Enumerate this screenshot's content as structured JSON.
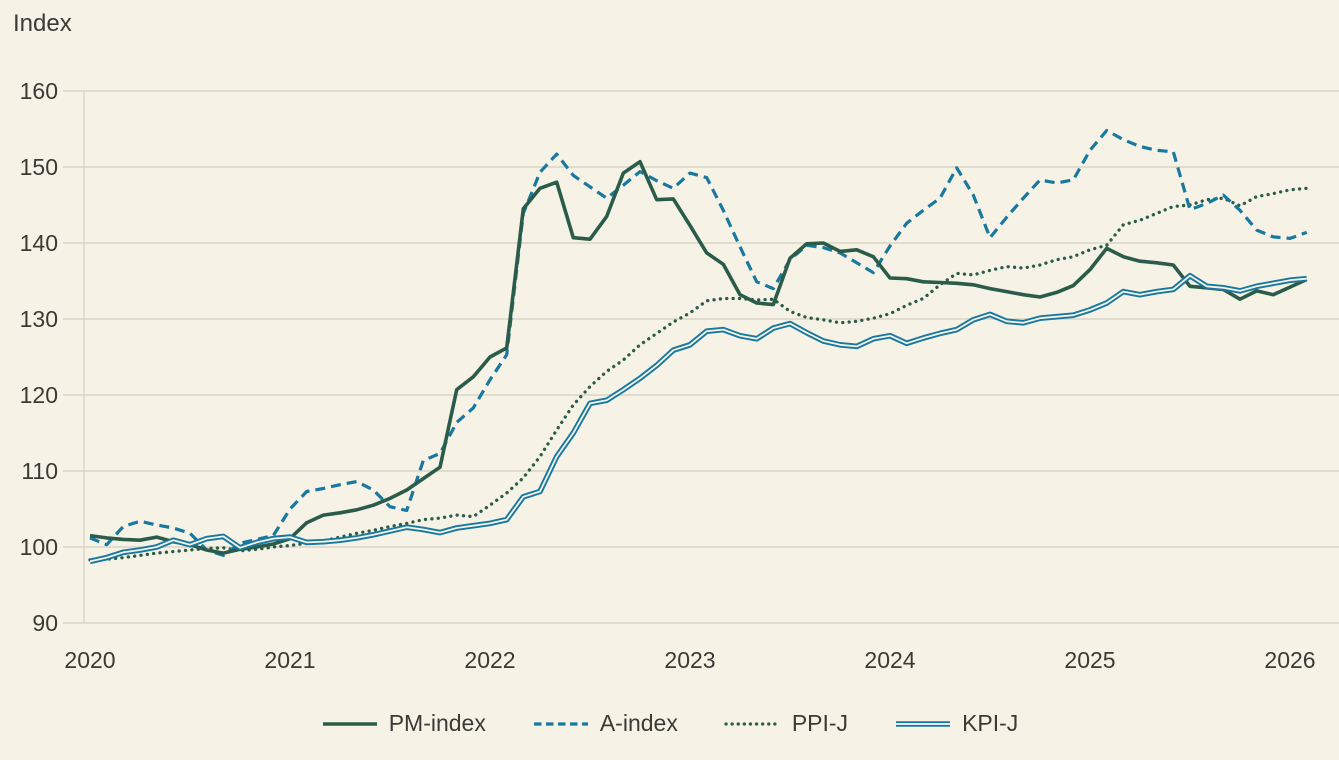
{
  "chart_data": {
    "type": "line",
    "title": "Index",
    "x_axis": {
      "tick_labels": [
        "2020",
        "2021",
        "2022",
        "2023",
        "2024",
        "2025",
        "2026"
      ],
      "months_per_tick": 12,
      "start": "2020-01"
    },
    "y_axis": {
      "min": 90,
      "max": 160,
      "step": 10,
      "tick_labels": [
        "160",
        "150",
        "140",
        "130",
        "120",
        "110",
        "100",
        "90"
      ]
    },
    "grid": true,
    "legend_position": "bottom",
    "colors": {
      "green": "#2b5c49",
      "blue": "#1878a0",
      "background": "#f6f3e6",
      "gridline": "#d8d4c6",
      "text": "#3a3a37"
    },
    "series": [
      {
        "name": "PM-index",
        "style": "solid",
        "color_key": "green",
        "values": [
          101.5,
          101.2,
          101.0,
          100.9,
          101.3,
          100.7,
          100.3,
          99.6,
          99.2,
          99.7,
          100.0,
          100.4,
          101.1,
          103.2,
          104.2,
          104.5,
          104.9,
          105.5,
          106.4,
          107.5,
          109.0,
          110.5,
          120.7,
          122.4,
          125.0,
          126.2,
          144.5,
          147.2,
          148.0,
          140.7,
          140.5,
          143.5,
          149.2,
          150.7,
          145.7,
          145.8,
          142.3,
          138.7,
          137.2,
          133.2,
          132.1,
          131.9,
          138.0,
          139.9,
          140.0,
          138.9,
          139.1,
          138.2,
          135.4,
          135.3,
          134.9,
          134.8,
          134.7,
          134.5,
          134.0,
          133.6,
          133.2,
          132.9,
          133.5,
          134.4,
          136.5,
          139.3,
          138.2,
          137.6,
          137.4,
          137.1,
          134.3,
          134.1,
          133.9,
          132.6,
          133.7,
          133.2,
          134.2,
          135.2
        ]
      },
      {
        "name": "A-index",
        "style": "dashed",
        "color_key": "blue",
        "values": [
          101.2,
          100.3,
          102.7,
          103.4,
          102.9,
          102.5,
          101.8,
          99.6,
          98.9,
          100.5,
          101.0,
          101.5,
          105.0,
          107.3,
          107.7,
          108.2,
          108.6,
          107.5,
          105.3,
          104.8,
          111.4,
          112.3,
          116.4,
          118.3,
          122.0,
          125.3,
          143.9,
          149.3,
          151.7,
          148.9,
          147.4,
          145.9,
          147.6,
          149.4,
          148.2,
          147.2,
          149.2,
          148.6,
          144.3,
          139.5,
          134.9,
          134.0,
          137.8,
          139.7,
          139.4,
          138.7,
          137.4,
          136.1,
          139.6,
          142.6,
          144.3,
          145.9,
          149.9,
          146.3,
          140.7,
          143.4,
          145.9,
          148.3,
          147.9,
          148.3,
          152.2,
          154.8,
          153.6,
          152.7,
          152.2,
          152.0,
          144.4,
          145.2,
          146.3,
          144.3,
          141.7,
          140.8,
          140.6,
          141.4
        ]
      },
      {
        "name": "PPI-J",
        "style": "dotted",
        "color_key": "green",
        "values": [
          98.3,
          98.4,
          98.6,
          98.9,
          99.2,
          99.4,
          99.6,
          99.8,
          99.9,
          99.5,
          99.7,
          100.0,
          100.2,
          100.5,
          100.8,
          101.3,
          101.8,
          102.2,
          102.7,
          103.1,
          103.6,
          103.8,
          104.2,
          104.0,
          105.5,
          107.1,
          109.1,
          111.9,
          115.4,
          118.7,
          121.1,
          123.1,
          124.6,
          126.6,
          128.1,
          129.6,
          130.8,
          132.4,
          132.7,
          132.7,
          132.5,
          132.6,
          131.0,
          130.2,
          129.9,
          129.5,
          129.7,
          130.1,
          130.7,
          131.8,
          132.7,
          134.5,
          136.0,
          135.8,
          136.4,
          136.9,
          136.7,
          137.1,
          137.8,
          138.2,
          139.1,
          139.7,
          142.4,
          143.0,
          143.9,
          144.8,
          145.0,
          145.7,
          145.9,
          144.9,
          146.1,
          146.5,
          147.0,
          147.2
        ]
      },
      {
        "name": "KPI-J",
        "style": "double",
        "color_key": "blue",
        "values": [
          98.1,
          98.6,
          99.3,
          99.6,
          100.0,
          100.9,
          100.3,
          101.1,
          101.4,
          99.9,
          100.6,
          101.1,
          101.3,
          100.6,
          100.7,
          100.9,
          101.2,
          101.6,
          102.1,
          102.6,
          102.3,
          101.9,
          102.5,
          102.8,
          103.1,
          103.6,
          106.6,
          107.3,
          111.9,
          115.0,
          118.9,
          119.3,
          120.7,
          122.2,
          123.9,
          125.9,
          126.6,
          128.4,
          128.6,
          127.8,
          127.4,
          128.8,
          129.4,
          128.2,
          127.1,
          126.6,
          126.4,
          127.4,
          127.8,
          126.8,
          127.5,
          128.1,
          128.6,
          129.9,
          130.6,
          129.7,
          129.5,
          130.1,
          130.3,
          130.5,
          131.2,
          132.1,
          133.6,
          133.2,
          133.6,
          133.9,
          135.7,
          134.3,
          134.1,
          133.7,
          134.3,
          134.7,
          135.1,
          135.3
        ]
      }
    ]
  }
}
